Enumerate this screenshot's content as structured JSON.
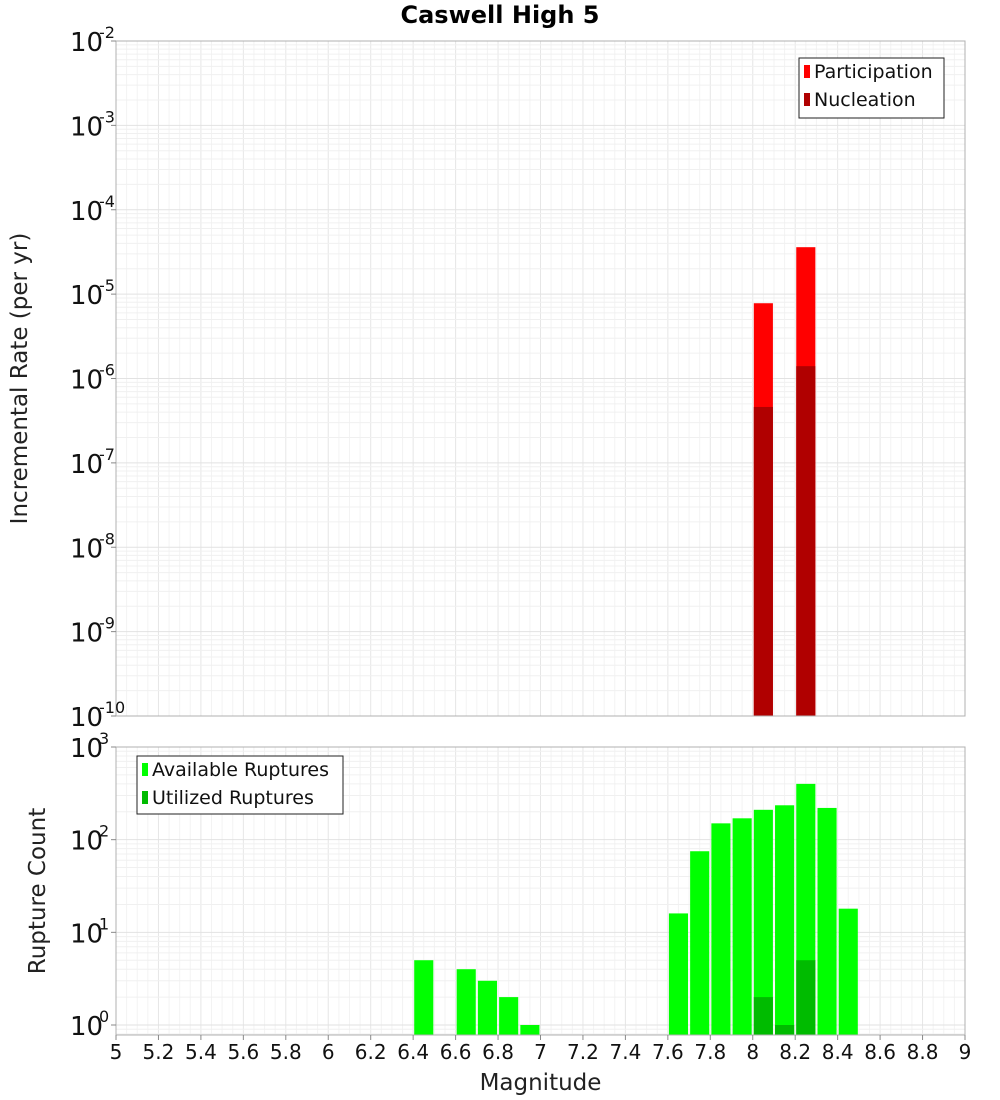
{
  "chart_data": [
    {
      "type": "bar",
      "title": "Caswell High 5",
      "xlabel": "",
      "ylabel": "Incremental Rate (per yr)",
      "yscale": "log",
      "xlim": [
        5,
        9
      ],
      "ylim": [
        1e-10,
        0.01
      ],
      "y_tick_bases": [
        "10",
        "10",
        "10",
        "10",
        "10",
        "10",
        "10",
        "10",
        "10"
      ],
      "y_tick_exps": [
        "-10",
        "-9",
        "-8",
        "-7",
        "-6",
        "-5",
        "-4",
        "-3",
        "-2"
      ],
      "grid": true,
      "bar_width": 0.09,
      "legend_position": "top-right",
      "series": [
        {
          "name": "Participation",
          "color": "#ff0000",
          "x": [
            8.05,
            8.25
          ],
          "values": [
            7.8e-06,
            3.6e-05
          ]
        },
        {
          "name": "Nucleation",
          "color": "#b00000",
          "x": [
            8.05,
            8.25
          ],
          "values": [
            4.6e-07,
            1.4e-06
          ]
        }
      ]
    },
    {
      "type": "bar",
      "title": "",
      "xlabel": "Magnitude",
      "ylabel": "Rupture Count",
      "yscale": "log",
      "xlim": [
        5,
        9
      ],
      "ylim": [
        0.78,
        1000
      ],
      "x_ticks": [
        "5",
        "5.2",
        "5.4",
        "5.6",
        "5.8",
        "6",
        "6.2",
        "6.4",
        "6.6",
        "6.8",
        "7",
        "7.2",
        "7.4",
        "7.6",
        "7.8",
        "8",
        "8.2",
        "8.4",
        "8.6",
        "8.8",
        "9"
      ],
      "y_tick_bases": [
        "10",
        "10",
        "10",
        "10"
      ],
      "y_tick_exps": [
        "0",
        "1",
        "2",
        "3"
      ],
      "grid": true,
      "bar_width": 0.09,
      "legend_position": "top-left",
      "series": [
        {
          "name": "Available Ruptures",
          "color": "#00ff00",
          "x": [
            6.45,
            6.65,
            6.75,
            6.85,
            6.95,
            7.65,
            7.75,
            7.85,
            7.95,
            8.05,
            8.15,
            8.25,
            8.35,
            8.45
          ],
          "values": [
            5,
            4,
            3,
            2,
            1,
            16,
            75,
            150,
            170,
            210,
            235,
            400,
            220,
            18
          ]
        },
        {
          "name": "Utilized Ruptures",
          "color": "#00bb00",
          "x": [
            8.05,
            8.15,
            8.25
          ],
          "values": [
            2,
            1,
            5
          ]
        }
      ]
    }
  ]
}
